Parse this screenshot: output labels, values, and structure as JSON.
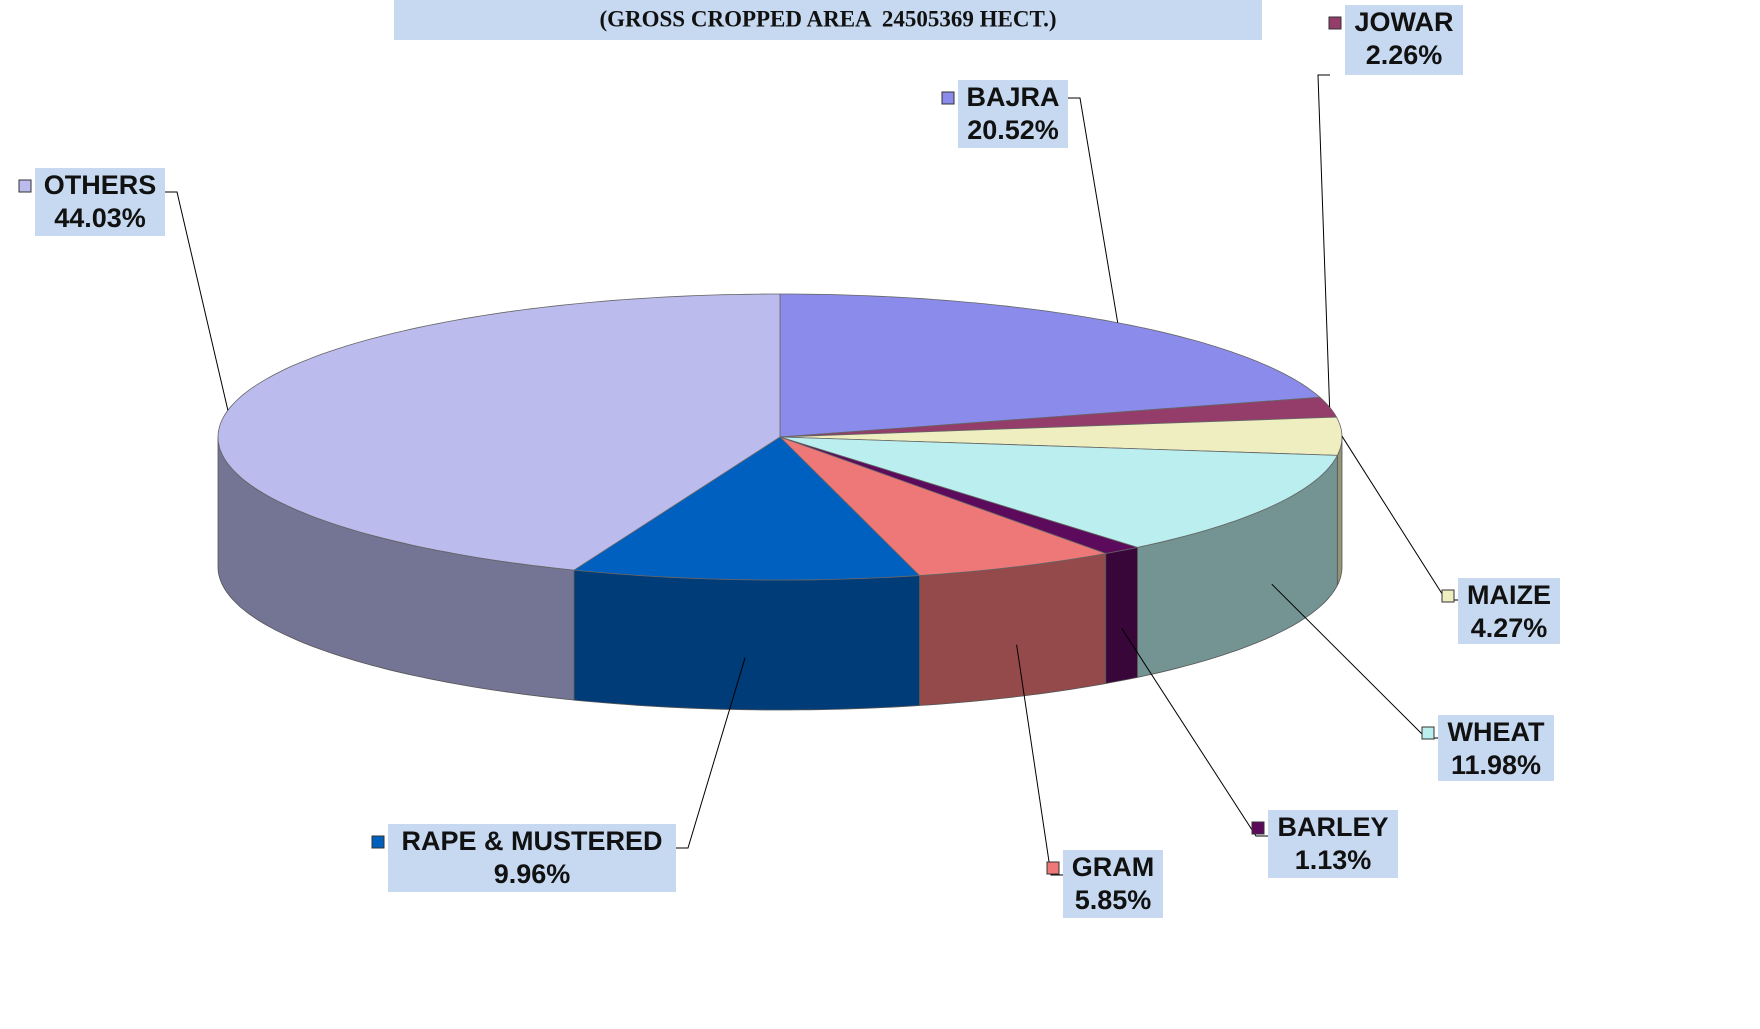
{
  "chart_data": {
    "type": "pie3d",
    "title": "(GROSS CROPPED AREA  24505369 HECT.)",
    "categories": [
      "BAJRA",
      "JOWAR",
      "MAIZE",
      "WHEAT",
      "BARLEY",
      "GRAM",
      "RAPE & MUSTERED",
      "OTHERS"
    ],
    "values": [
      20.52,
      2.26,
      4.27,
      11.98,
      1.13,
      5.85,
      9.96,
      44.03
    ],
    "value_labels": [
      "20.52%",
      "2.26%",
      "4.27%",
      "11.98%",
      "1.13%",
      "5.85%",
      "9.96%",
      "44.03%"
    ],
    "colors": [
      "#8b8beb",
      "#943d6a",
      "#eeeec0",
      "#bbeeee",
      "#5c0a5c",
      "#ee7777",
      "#0060c0",
      "#bbbbee"
    ]
  }
}
